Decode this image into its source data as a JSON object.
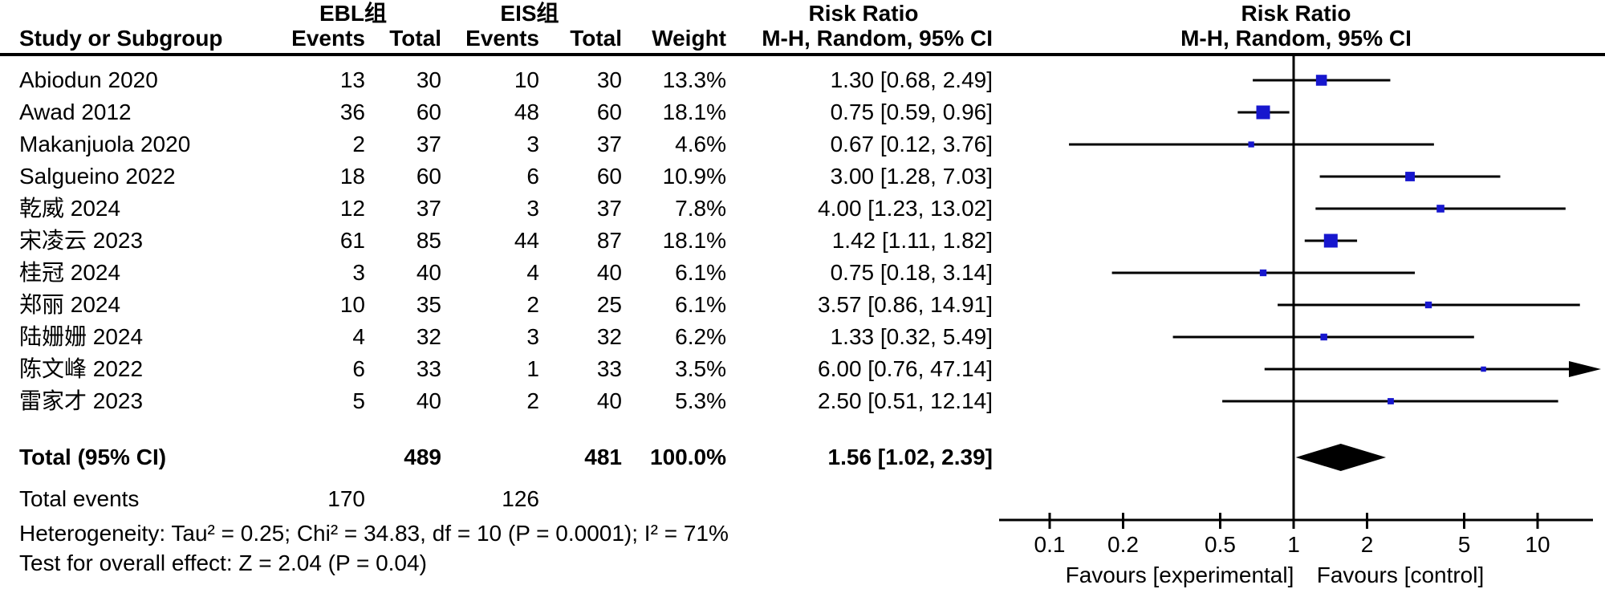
{
  "colors": {
    "marker_blue": "#1717CE",
    "diamond_black": "#000000",
    "text": "#000000"
  },
  "header": {
    "ebl_group": "EBL组",
    "eis_group": "EIS组",
    "risk_ratio_left": "Risk Ratio",
    "risk_ratio_right": "Risk Ratio",
    "study": "Study or Subgroup",
    "events": "Events",
    "total": "Total",
    "weight": "Weight",
    "mh_ci": "M-H, Random, 95% CI"
  },
  "totals": {
    "label": "Total (95% CI)",
    "total1": "489",
    "total2": "481",
    "weight": "100.0%",
    "rr_label": "1.56 [1.02, 2.39]",
    "events_label": "Total events",
    "events1": "170",
    "events2": "126"
  },
  "footer": {
    "heterogeneity": "Heterogeneity: Tau² = 0.25; Chi² = 34.83, df = 10 (P = 0.0001); I² = 71%",
    "overall_effect": "Test for overall effect: Z = 2.04 (P = 0.04)"
  },
  "chart_data": {
    "type": "forest",
    "effect_measure": "Risk Ratio",
    "model": "M-H, Random, 95% CI",
    "x_scale": "log10",
    "x_ticks": [
      0.1,
      0.2,
      0.5,
      1,
      2,
      5,
      10
    ],
    "null_line": 1,
    "favours_left": "Favours [experimental]",
    "favours_right": "Favours [control]",
    "studies": [
      {
        "study": "Abiodun 2020",
        "ebl_events": 13,
        "ebl_total": 30,
        "eis_events": 10,
        "eis_total": 30,
        "weight": "13.3%",
        "weight_pct": 13.3,
        "rr": 1.3,
        "ci_low": 0.68,
        "ci_high": 2.49,
        "rr_label": "1.30 [0.68, 2.49]"
      },
      {
        "study": "Awad 2012",
        "ebl_events": 36,
        "ebl_total": 60,
        "eis_events": 48,
        "eis_total": 60,
        "weight": "18.1%",
        "weight_pct": 18.1,
        "rr": 0.75,
        "ci_low": 0.59,
        "ci_high": 0.96,
        "rr_label": "0.75 [0.59, 0.96]"
      },
      {
        "study": "Makanjuola 2020",
        "ebl_events": 2,
        "ebl_total": 37,
        "eis_events": 3,
        "eis_total": 37,
        "weight": "4.6%",
        "weight_pct": 4.6,
        "rr": 0.67,
        "ci_low": 0.12,
        "ci_high": 3.76,
        "rr_label": "0.67 [0.12, 3.76]"
      },
      {
        "study": "Salgueino 2022",
        "ebl_events": 18,
        "ebl_total": 60,
        "eis_events": 6,
        "eis_total": 60,
        "weight": "10.9%",
        "weight_pct": 10.9,
        "rr": 3.0,
        "ci_low": 1.28,
        "ci_high": 7.03,
        "rr_label": "3.00 [1.28, 7.03]"
      },
      {
        "study": "乾威 2024",
        "ebl_events": 12,
        "ebl_total": 37,
        "eis_events": 3,
        "eis_total": 37,
        "weight": "7.8%",
        "weight_pct": 7.8,
        "rr": 4.0,
        "ci_low": 1.23,
        "ci_high": 13.02,
        "rr_label": "4.00 [1.23, 13.02]"
      },
      {
        "study": "宋凌云 2023",
        "ebl_events": 61,
        "ebl_total": 85,
        "eis_events": 44,
        "eis_total": 87,
        "weight": "18.1%",
        "weight_pct": 18.1,
        "rr": 1.42,
        "ci_low": 1.11,
        "ci_high": 1.82,
        "rr_label": "1.42 [1.11, 1.82]"
      },
      {
        "study": "桂冠 2024",
        "ebl_events": 3,
        "ebl_total": 40,
        "eis_events": 4,
        "eis_total": 40,
        "weight": "6.1%",
        "weight_pct": 6.1,
        "rr": 0.75,
        "ci_low": 0.18,
        "ci_high": 3.14,
        "rr_label": "0.75 [0.18, 3.14]"
      },
      {
        "study": "郑丽 2024",
        "ebl_events": 10,
        "ebl_total": 35,
        "eis_events": 2,
        "eis_total": 25,
        "weight": "6.1%",
        "weight_pct": 6.1,
        "rr": 3.57,
        "ci_low": 0.86,
        "ci_high": 14.91,
        "rr_label": "3.57 [0.86, 14.91]"
      },
      {
        "study": "陆姗姗 2024",
        "ebl_events": 4,
        "ebl_total": 32,
        "eis_events": 3,
        "eis_total": 32,
        "weight": "6.2%",
        "weight_pct": 6.2,
        "rr": 1.33,
        "ci_low": 0.32,
        "ci_high": 5.49,
        "rr_label": "1.33 [0.32, 5.49]"
      },
      {
        "study": "陈文峰 2022",
        "ebl_events": 6,
        "ebl_total": 33,
        "eis_events": 1,
        "eis_total": 33,
        "weight": "3.5%",
        "weight_pct": 3.5,
        "rr": 6.0,
        "ci_low": 0.76,
        "ci_high": 47.14,
        "rr_label": "6.00 [0.76, 47.14]"
      },
      {
        "study": "雷家才 2023",
        "ebl_events": 5,
        "ebl_total": 40,
        "eis_events": 2,
        "eis_total": 40,
        "weight": "5.3%",
        "weight_pct": 5.3,
        "rr": 2.5,
        "ci_low": 0.51,
        "ci_high": 12.14,
        "rr_label": "2.50 [0.51, 12.14]"
      }
    ],
    "total": {
      "rr": 1.56,
      "ci_low": 1.02,
      "ci_high": 2.39
    }
  }
}
